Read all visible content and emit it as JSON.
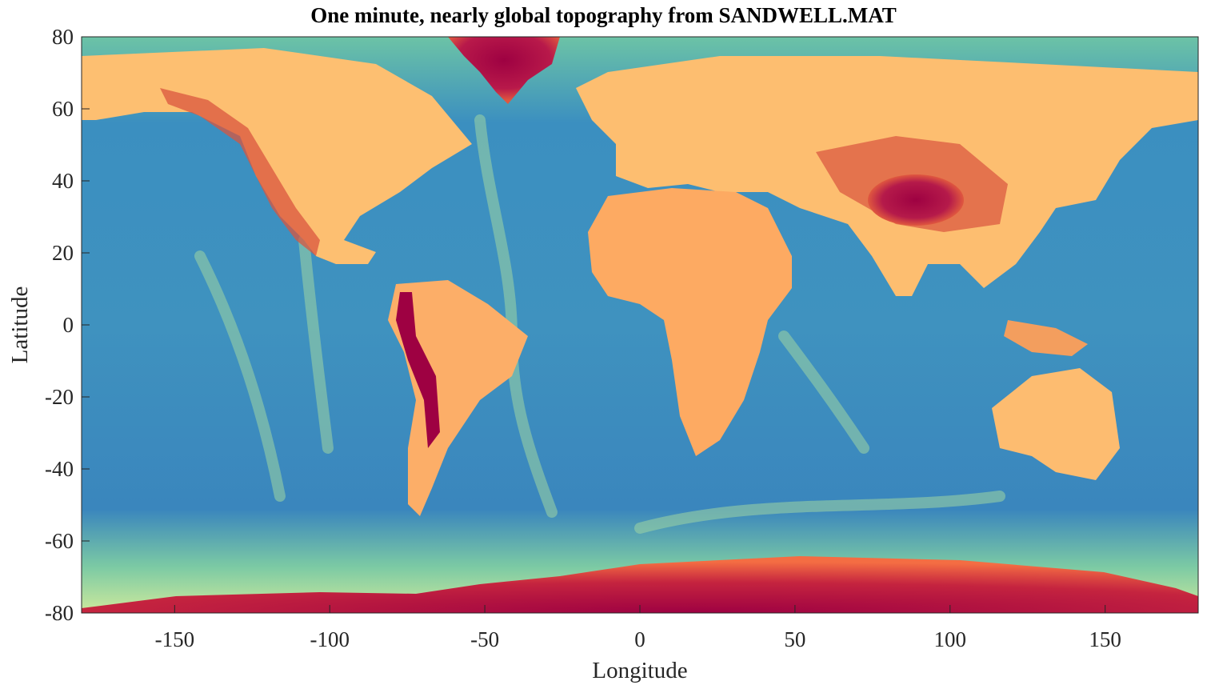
{
  "chart_data": {
    "type": "heatmap",
    "title": "One minute, nearly global topography from SANDWELL.MAT",
    "xlabel": "Longitude",
    "ylabel": "Latitude",
    "xlim": [
      -180,
      180
    ],
    "ylim": [
      -80,
      80
    ],
    "x_ticks": [
      -150,
      -100,
      -50,
      0,
      50,
      100,
      150
    ],
    "y_ticks": [
      80,
      60,
      40,
      20,
      0,
      -20,
      -40,
      -60,
      -80
    ],
    "colormap": "spectral_r",
    "colors": {
      "low": "#5e4fa2",
      "deep_ocean": "#3288bd",
      "mid_ocean": "#66c2a5",
      "shelf": "#e6f598",
      "lowland": "#fee08b",
      "upland": "#fdae61",
      "mountain": "#d53e4f",
      "high": "#9e0142"
    }
  }
}
